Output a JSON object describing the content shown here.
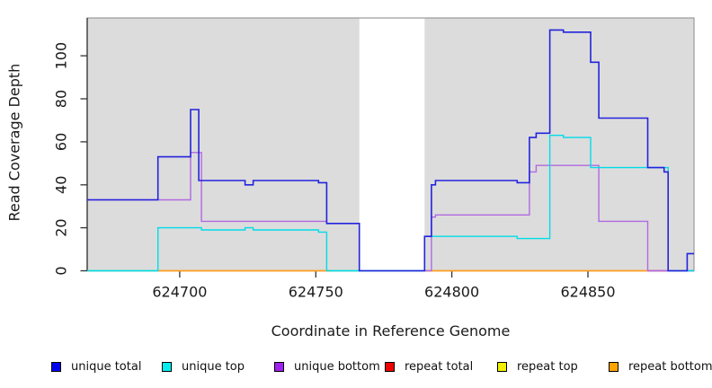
{
  "chart_data": {
    "type": "step-line",
    "title": "",
    "xlabel": "Coordinate in Reference Genome",
    "ylabel": "Read Coverage Depth",
    "xlim": [
      624666,
      624889
    ],
    "ylim": [
      0,
      117.6
    ],
    "xticks": [
      {
        "value": 624700,
        "label": "624700"
      },
      {
        "value": 624750,
        "label": "624750"
      },
      {
        "value": 624800,
        "label": "624800"
      },
      {
        "value": 624850,
        "label": "624850"
      }
    ],
    "yticks": [
      {
        "value": 0,
        "label": "0"
      },
      {
        "value": 20,
        "label": "20"
      },
      {
        "value": 40,
        "label": "40"
      },
      {
        "value": 60,
        "label": "60"
      },
      {
        "value": 80,
        "label": "80"
      },
      {
        "value": 100,
        "label": "100"
      }
    ],
    "grid": false,
    "legend_position": "bottom",
    "plot_bg": "#dcdcdc",
    "border_color": "#999999",
    "axis_color": "#333333",
    "gap_region": {
      "from": 624766,
      "to": 624790,
      "color": "#ffffff"
    },
    "baseline_segments": [
      {
        "from": 624666,
        "to": 624692,
        "color": "#8fd6a0"
      },
      {
        "from": 624692,
        "to": 624755.5,
        "color": "#ff9d1e"
      },
      {
        "from": 624755.5,
        "to": 624766,
        "color": "#8fd6a0"
      },
      {
        "from": 624790,
        "to": 624872,
        "color": "#ff9d1e"
      },
      {
        "from": 624872,
        "to": 624889,
        "color": "#e0607d"
      }
    ],
    "series": [
      {
        "name": "unique total",
        "color": "#2323dd",
        "width": 1.6,
        "points": [
          [
            624666,
            33
          ],
          [
            624692,
            53
          ],
          [
            624704,
            75
          ],
          [
            624707,
            42
          ],
          [
            624724,
            40
          ],
          [
            624727,
            42
          ],
          [
            624751,
            41
          ],
          [
            624754,
            22
          ],
          [
            624766,
            0
          ],
          [
            624790,
            16
          ],
          [
            624792.5,
            40
          ],
          [
            624794,
            42
          ],
          [
            624824,
            41
          ],
          [
            624828.5,
            62
          ],
          [
            624831,
            64
          ],
          [
            624836,
            112
          ],
          [
            624841,
            111
          ],
          [
            624851,
            97
          ],
          [
            624854,
            71
          ],
          [
            624872,
            48
          ],
          [
            624878,
            46
          ],
          [
            624879.5,
            0
          ],
          [
            624886.5,
            8
          ],
          [
            624889,
            8
          ]
        ]
      },
      {
        "name": "unique top",
        "color": "#00dce8",
        "width": 1.4,
        "points": [
          [
            624666,
            0
          ],
          [
            624692,
            20
          ],
          [
            624708,
            19
          ],
          [
            624724,
            20
          ],
          [
            624727,
            19
          ],
          [
            624751,
            18
          ],
          [
            624754,
            0
          ],
          [
            624790,
            16
          ],
          [
            624824,
            15
          ],
          [
            624836,
            63
          ],
          [
            624841,
            62
          ],
          [
            624851,
            48
          ],
          [
            624879.5,
            0
          ],
          [
            624889,
            0
          ]
        ]
      },
      {
        "name": "unique bottom",
        "color": "#b169e1",
        "width": 1.4,
        "points": [
          [
            624666,
            33
          ],
          [
            624704,
            55
          ],
          [
            624708,
            23
          ],
          [
            624754,
            22
          ],
          [
            624766,
            0
          ],
          [
            624792.5,
            25
          ],
          [
            624794,
            26
          ],
          [
            624828.5,
            46
          ],
          [
            624831,
            49
          ],
          [
            624854,
            23
          ],
          [
            624872,
            0
          ],
          [
            624889,
            0
          ]
        ]
      }
    ],
    "zero_series": [
      {
        "name": "repeat total",
        "value": 0
      },
      {
        "name": "repeat top",
        "value": 0
      },
      {
        "name": "repeat bottom",
        "value": 0
      }
    ],
    "legend": [
      {
        "label": "unique total",
        "color": "#0000ee"
      },
      {
        "label": "unique top",
        "color": "#00eeee"
      },
      {
        "label": "unique bottom",
        "color": "#a020f0"
      },
      {
        "label": "repeat total",
        "color": "#ee0000"
      },
      {
        "label": "repeat top",
        "color": "#f0f000"
      },
      {
        "label": "repeat bottom",
        "color": "#ffa500"
      }
    ]
  }
}
